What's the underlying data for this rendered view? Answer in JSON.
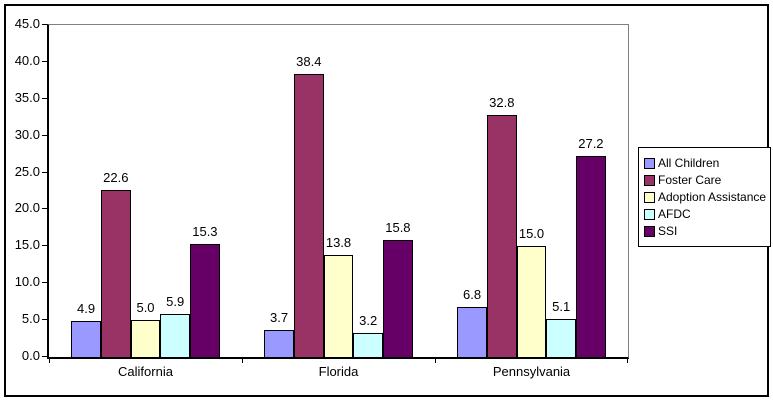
{
  "chart_data": {
    "type": "bar",
    "title": "",
    "xlabel": "",
    "ylabel": "",
    "categories": [
      "California",
      "Florida",
      "Pennsylvania"
    ],
    "series": [
      {
        "name": "All Children",
        "color": "#9999FF",
        "values": [
          4.9,
          3.7,
          6.8
        ]
      },
      {
        "name": "Foster Care",
        "color": "#993366",
        "values": [
          22.6,
          38.4,
          32.8
        ]
      },
      {
        "name": "Adoption Assistance",
        "color": "#FFFFCC",
        "values": [
          5.0,
          13.8,
          15.0
        ]
      },
      {
        "name": "AFDC",
        "color": "#CCFFFF",
        "values": [
          5.9,
          3.2,
          5.1
        ]
      },
      {
        "name": "SSI",
        "color": "#660066",
        "values": [
          15.3,
          15.8,
          27.2
        ]
      }
    ],
    "ylim": [
      0,
      45
    ],
    "y_ticks": [
      "0.0",
      "5.0",
      "10.0",
      "15.0",
      "20.0",
      "25.0",
      "30.0",
      "35.0",
      "40.0",
      "45.0"
    ],
    "value_labels_shown": true,
    "value_label_decimals": 1,
    "grid": false,
    "legend_position": "right"
  },
  "colors": {
    "axis": "#000000",
    "plot_border": "#808080",
    "chart_background": "#FFFFFF",
    "text": "#000000"
  }
}
